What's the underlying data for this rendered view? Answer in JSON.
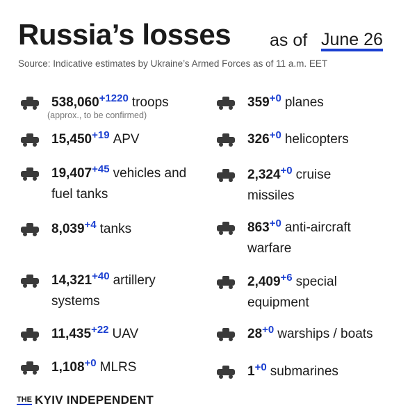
{
  "header": {
    "title": "Russia’s losses",
    "as_of": "as of",
    "date": "June 26"
  },
  "source": "Source: Indicative estimates by Ukraine’s Armed Forces as of 11 a.m. EET",
  "left": [
    {
      "value": "538,060",
      "change": "+1220",
      "label": "troops",
      "note": "(approx., to be confirmed)"
    },
    {
      "value": "15,450",
      "change": "+19",
      "label": "APV"
    },
    {
      "value": "19,407",
      "change": "+45",
      "label": "vehicles and",
      "label_line2": "fuel tanks"
    },
    {
      "value": "8,039",
      "change": "+4",
      "label": "tanks"
    },
    {
      "value": "14,321",
      "change": "+40",
      "label": "artillery",
      "label_line2": "systems"
    },
    {
      "value": "11,435",
      "change": "+22",
      "label": "UAV"
    },
    {
      "value": "1,108",
      "change": "+0",
      "label": "MLRS"
    }
  ],
  "right": [
    {
      "value": "359",
      "change": "+0",
      "label": "planes"
    },
    {
      "value": "326",
      "change": "+0",
      "label": "helicopters"
    },
    {
      "value": "2,324",
      "change": "+0",
      "label": "cruise",
      "label_line2": "missiles"
    },
    {
      "value": "863",
      "change": "+0",
      "label": "anti-aircraft",
      "label_line2": "warfare"
    },
    {
      "value": "2,409",
      "change": "+6",
      "label": "special",
      "label_line2": "equipment"
    },
    {
      "value": "28",
      "change": "+0",
      "label": "warships / boats"
    },
    {
      "value": "1",
      "change": "+0",
      "label": "submarines"
    }
  ],
  "footer": {
    "prefix": "THE",
    "brand": "KYIV INDEPENDENT"
  }
}
